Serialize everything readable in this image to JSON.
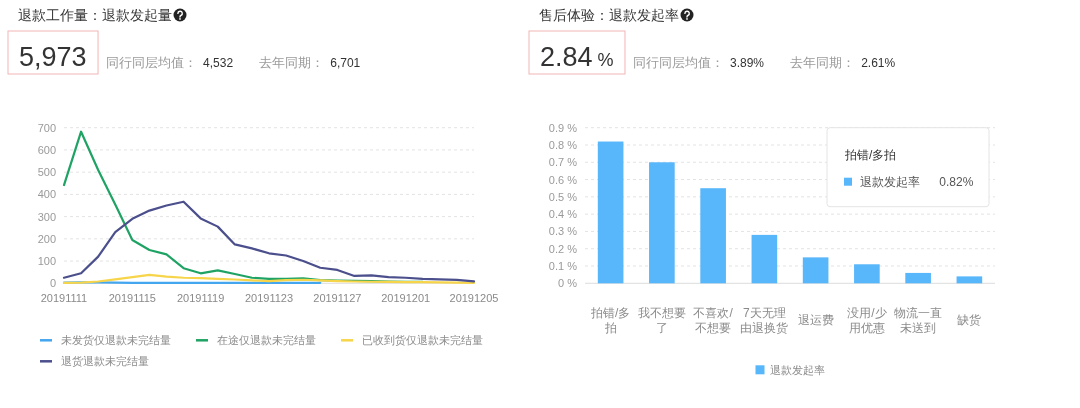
{
  "chart_data": [
    {
      "type": "other",
      "title": "退款工作量：退款发起量",
      "annotations": [
        "5,973",
        "同行同层均值：",
        "4,532",
        "去年同期：",
        "6,701"
      ]
    },
    {
      "type": "line",
      "categories": [
        "20191111",
        null,
        null,
        null,
        "20191115",
        null,
        null,
        null,
        "20191119",
        null,
        null,
        null,
        "20191123",
        null,
        null,
        null,
        "20191127",
        null,
        null,
        null,
        "20191201",
        null,
        null,
        null,
        "20191205"
      ],
      "series": [
        {
          "name": "未发货仅退款未完结量",
          "color": "#45a6f0",
          "values": [
            3,
            4,
            4,
            3,
            2,
            2,
            2,
            2,
            2,
            2,
            2,
            2,
            2,
            2,
            2,
            2,
            null,
            null,
            null,
            null,
            null,
            null,
            null,
            null,
            null
          ]
        },
        {
          "name": "在途仅退款未完结量",
          "color": "#1fa364",
          "values": [
            442,
            682,
            510,
            355,
            195,
            150,
            130,
            68,
            45,
            58,
            42,
            25,
            20,
            20,
            22,
            14,
            12,
            11,
            10,
            8,
            7,
            6,
            null,
            null,
            null
          ]
        },
        {
          "name": "已收到货仅退款未完结量",
          "color": "#f7d54a",
          "values": [
            2,
            3,
            8,
            18,
            28,
            38,
            30,
            25,
            23,
            20,
            17,
            13,
            10,
            14,
            16,
            13,
            10,
            8,
            7,
            6,
            5,
            5,
            4,
            3,
            2
          ]
        },
        {
          "name": "退货退款未完结量",
          "color": "#4b4f8c",
          "values": [
            25,
            45,
            120,
            230,
            290,
            327,
            350,
            367,
            292,
            255,
            175,
            157,
            135,
            125,
            100,
            70,
            60,
            33,
            36,
            28,
            25,
            20,
            18,
            15,
            9
          ]
        }
      ],
      "ylim": [
        0,
        700
      ],
      "yticks": [
        0,
        100,
        200,
        300,
        400,
        500,
        600,
        700
      ],
      "grid": "y",
      "legend": "bottom left"
    },
    {
      "type": "other",
      "title": "售后体验：退款发起率",
      "annotations": [
        "2.84 %",
        "同行同层均值：",
        "3.89%",
        "去年同期：",
        "2.61%"
      ]
    },
    {
      "type": "bar",
      "categories": [
        "拍错/多拍",
        "我不想要了",
        "不喜欢/不想要",
        "7天无理由退换货",
        "退运费",
        "没用/少用优惠",
        "物流一直未送到",
        "缺货"
      ],
      "series": [
        {
          "name": "退款发起率",
          "color": "#58b6fa",
          "values": [
            0.82,
            0.7,
            0.55,
            0.28,
            0.15,
            0.11,
            0.06,
            0.04
          ]
        }
      ],
      "ylim": [
        0,
        0.9
      ],
      "yticks": [
        {
          "value": 0,
          "label": "0 %"
        },
        {
          "value": 0.1,
          "label": "0.1 %"
        },
        {
          "value": 0.2,
          "label": "0.2 %"
        },
        {
          "value": 0.3,
          "label": "0.3 %"
        },
        {
          "value": 0.4,
          "label": "0.4 %"
        },
        {
          "value": 0.5,
          "label": "0.5 %"
        },
        {
          "value": 0.6,
          "label": "0.6 %"
        },
        {
          "value": 0.7,
          "label": "0.7 %"
        },
        {
          "value": 0.8,
          "label": "0.8 %"
        },
        {
          "value": 0.9,
          "label": "0.9 %"
        }
      ],
      "grid": "y",
      "legend": "bottom",
      "annotations": [
        "拍错/多拍",
        "退款发起率 0.82%"
      ]
    }
  ]
}
